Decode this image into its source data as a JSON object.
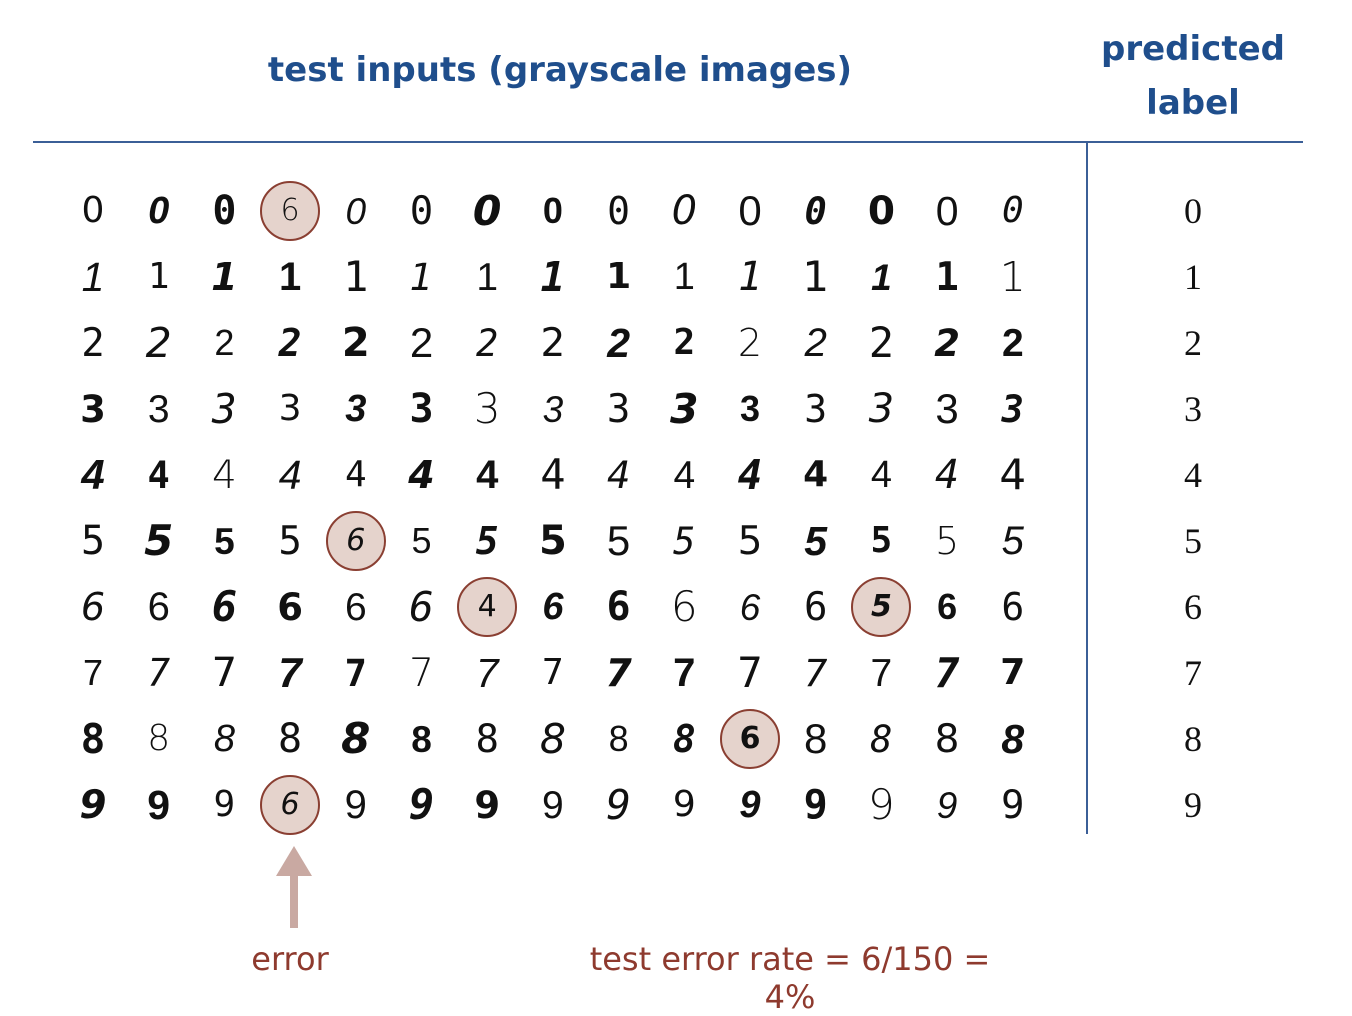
{
  "header": {
    "inputs_title": "test inputs (grayscale images)",
    "predicted_title_line1": "predicted",
    "predicted_title_line2": "label"
  },
  "rows": [
    {
      "label": "0",
      "digits": [
        "0",
        "0",
        "0",
        "6",
        "0",
        "0",
        "0",
        "0",
        "0",
        "0",
        "0",
        "0",
        "0",
        "0",
        "0"
      ],
      "errors": [
        3
      ]
    },
    {
      "label": "1",
      "digits": [
        "1",
        "1",
        "1",
        "1",
        "1",
        "1",
        "1",
        "1",
        "1",
        "1",
        "1",
        "1",
        "1",
        "1",
        "1"
      ],
      "errors": []
    },
    {
      "label": "2",
      "digits": [
        "2",
        "2",
        "2",
        "2",
        "2",
        "2",
        "2",
        "2",
        "2",
        "2",
        "2",
        "2",
        "2",
        "2",
        "2"
      ],
      "errors": []
    },
    {
      "label": "3",
      "digits": [
        "3",
        "3",
        "3",
        "3",
        "3",
        "3",
        "3",
        "3",
        "3",
        "3",
        "3",
        "3",
        "3",
        "3",
        "3"
      ],
      "errors": []
    },
    {
      "label": "4",
      "digits": [
        "4",
        "4",
        "4",
        "4",
        "4",
        "4",
        "4",
        "4",
        "4",
        "4",
        "4",
        "4",
        "4",
        "4",
        "4"
      ],
      "errors": []
    },
    {
      "label": "5",
      "digits": [
        "5",
        "5",
        "5",
        "5",
        "6",
        "5",
        "5",
        "5",
        "5",
        "5",
        "5",
        "5",
        "5",
        "5",
        "5"
      ],
      "errors": [
        4
      ]
    },
    {
      "label": "6",
      "digits": [
        "6",
        "6",
        "6",
        "6",
        "6",
        "6",
        "4",
        "6",
        "6",
        "6",
        "6",
        "6",
        "5",
        "6",
        "6"
      ],
      "errors": [
        6,
        12
      ]
    },
    {
      "label": "7",
      "digits": [
        "7",
        "7",
        "7",
        "7",
        "7",
        "7",
        "7",
        "7",
        "7",
        "7",
        "7",
        "7",
        "7",
        "7",
        "7"
      ],
      "errors": []
    },
    {
      "label": "8",
      "digits": [
        "8",
        "8",
        "8",
        "8",
        "8",
        "8",
        "8",
        "8",
        "8",
        "8",
        "6",
        "8",
        "8",
        "8",
        "8"
      ],
      "errors": [
        10
      ]
    },
    {
      "label": "9",
      "digits": [
        "9",
        "9",
        "9",
        "6",
        "9",
        "9",
        "9",
        "9",
        "9",
        "9",
        "9",
        "9",
        "9",
        "9",
        "9"
      ],
      "errors": [
        3
      ]
    }
  ],
  "footer": {
    "error_label": "error",
    "error_rate_text": "test error rate = 6/150 = 4%"
  },
  "colors": {
    "header_blue": "#1f4e8c",
    "rule_blue": "#3b5f97",
    "error_red": "#8e3a2e",
    "error_fill": "#e5d3cc",
    "arrow": "#c9a9a2"
  }
}
